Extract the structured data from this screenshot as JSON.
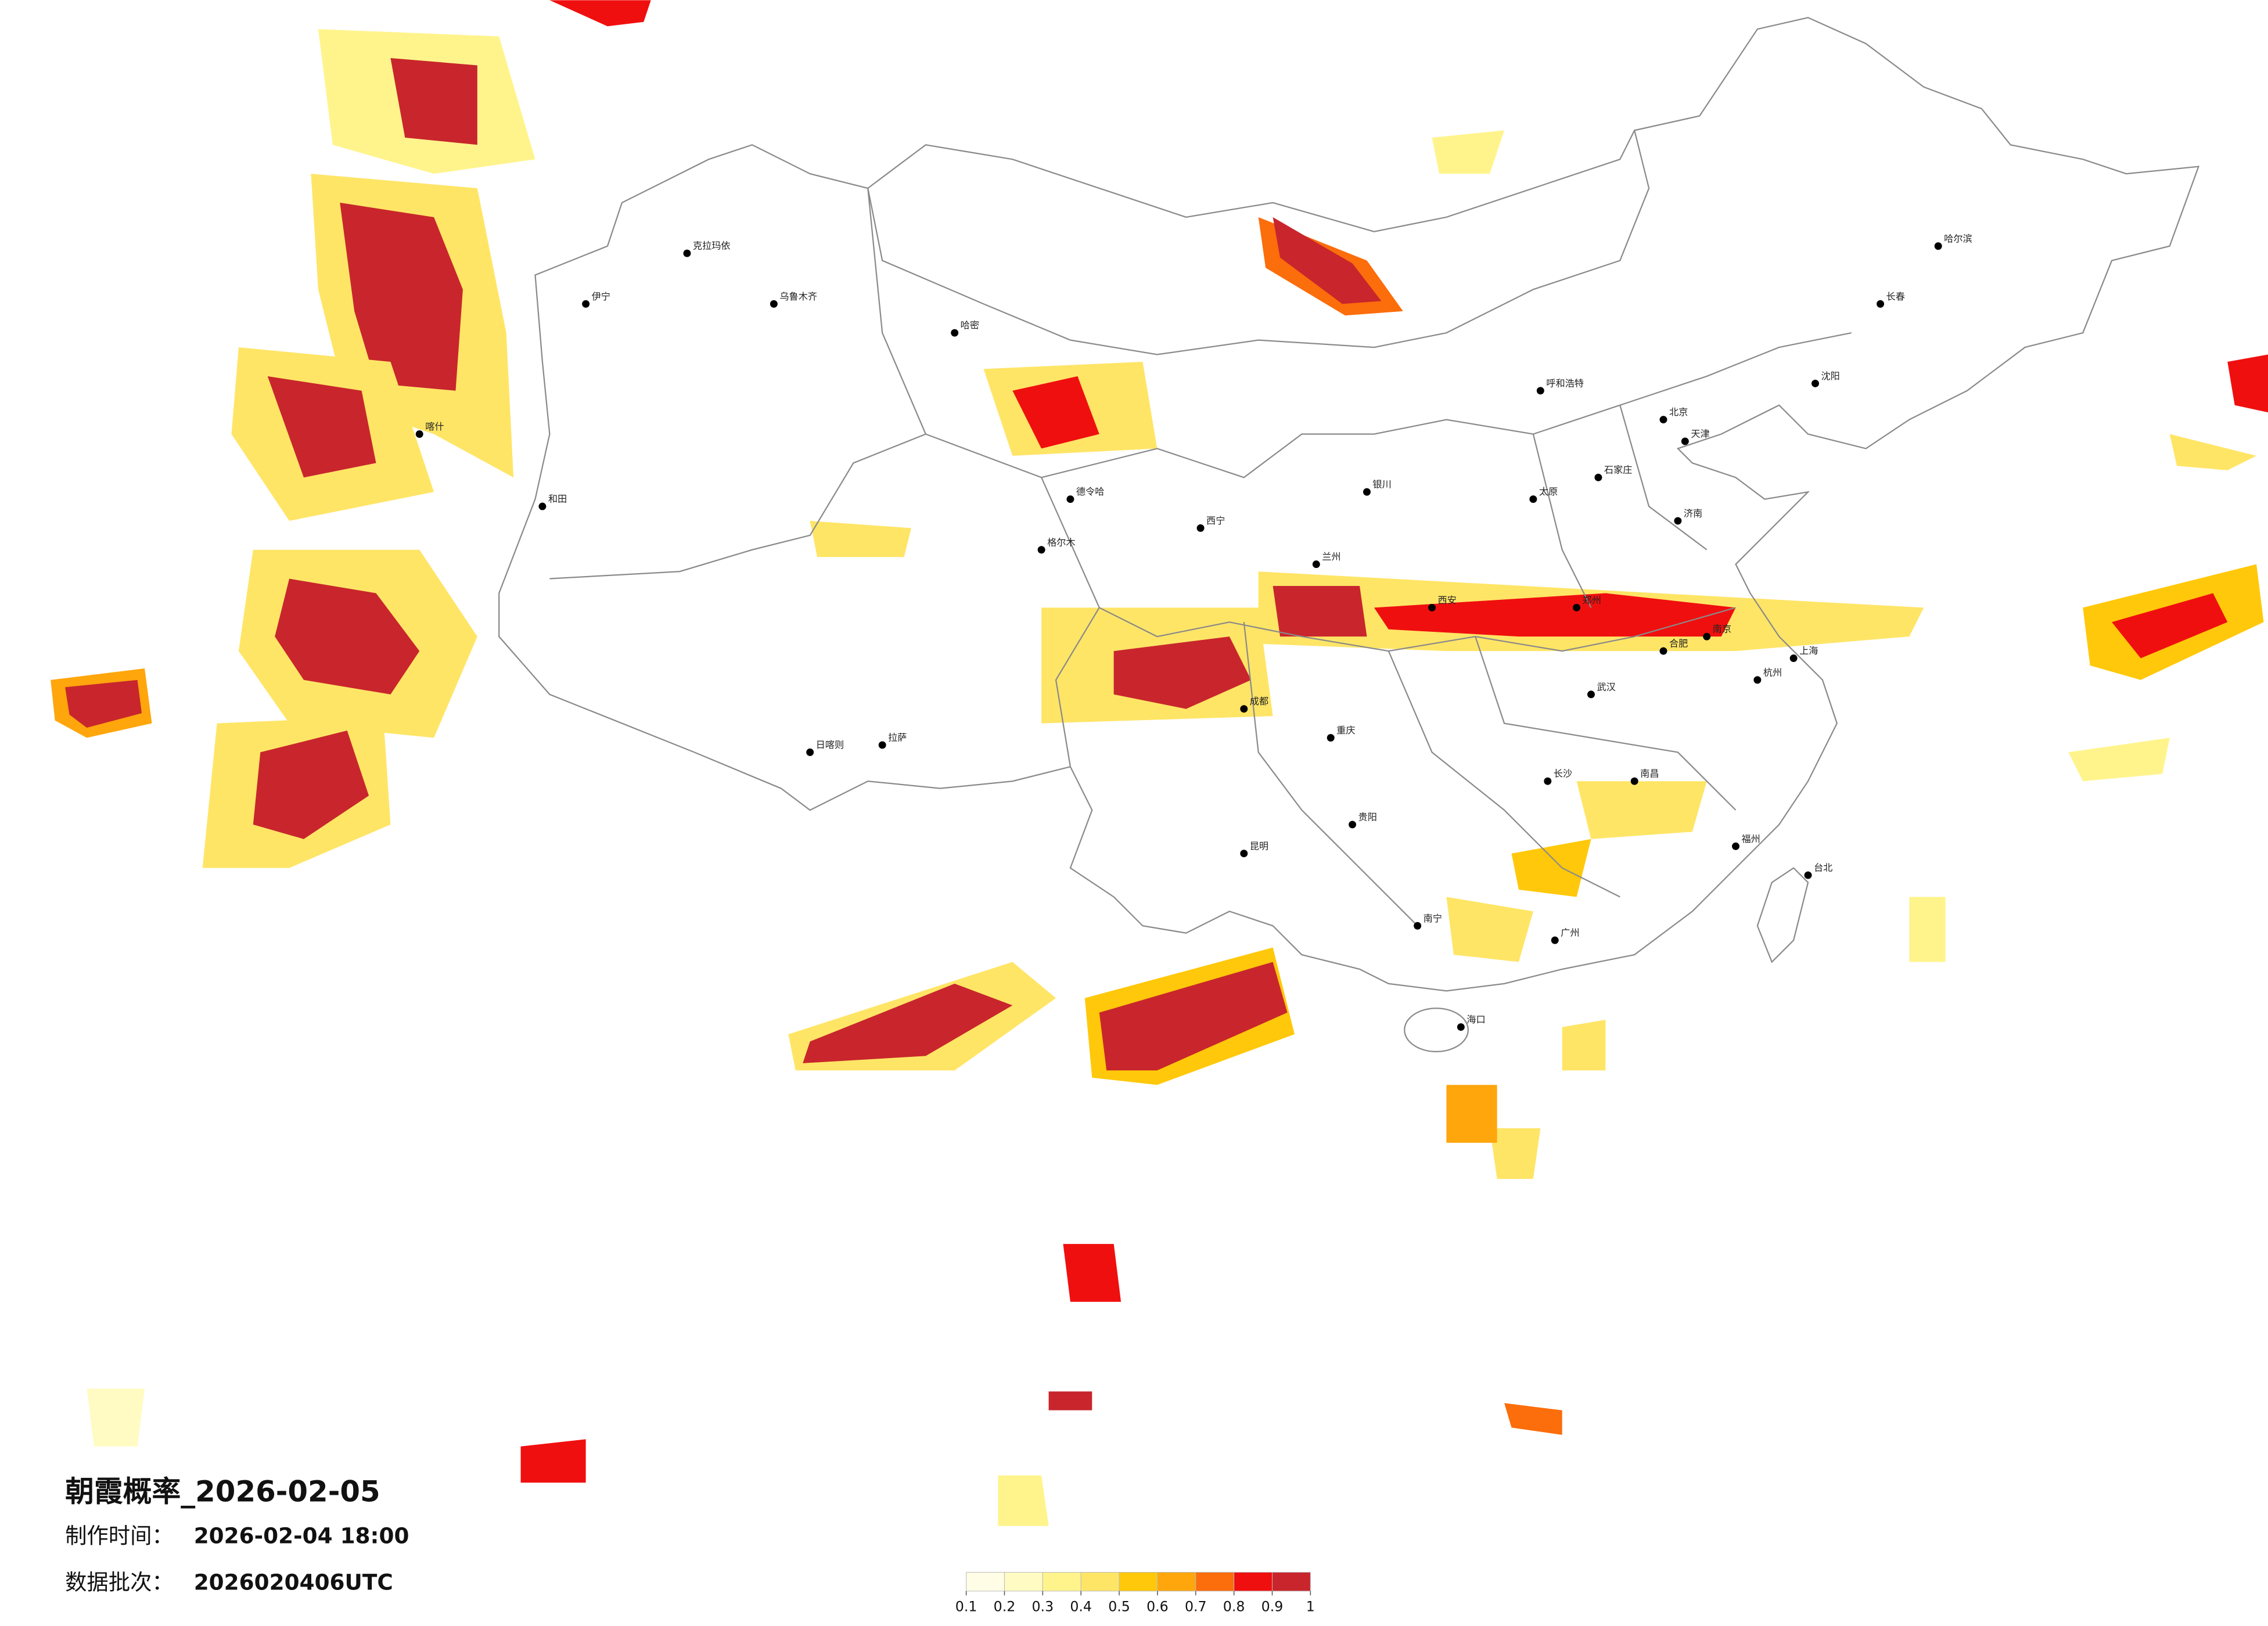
{
  "header": {
    "title": "朝霞概率_2026-02-05",
    "made_label": "制作时间：",
    "made_value": "2026-02-04 18:00",
    "batch_label": "数据批次：",
    "batch_value": "2026020406UTC"
  },
  "colorbar": {
    "ticks": [
      0.1,
      0.2,
      0.3,
      0.4,
      0.5,
      0.6,
      0.7,
      0.8,
      0.9,
      1
    ],
    "colors": [
      "#fffde6",
      "#fffbc2",
      "#fff48c",
      "#ffe566",
      "#ffc80a",
      "#ffa60c",
      "#fc6d0b",
      "#f00f0f",
      "#c8262c"
    ]
  },
  "cities": [
    "北京",
    "天津",
    "石家庄",
    "太原",
    "呼和浩特",
    "沈阳",
    "长春",
    "哈尔滨",
    "济南",
    "郑州",
    "西安",
    "兰州",
    "西宁",
    "银川",
    "乌鲁木齐",
    "拉萨",
    "成都",
    "重庆",
    "贵阳",
    "昆明",
    "南宁",
    "广州",
    "福州",
    "南昌",
    "长沙",
    "武汉",
    "合肥",
    "南京",
    "杭州",
    "上海",
    "海口",
    "台北",
    "喀什",
    "和田",
    "伊宁",
    "克拉玛依",
    "哈密",
    "德令哈",
    "日喀则",
    "格尔木"
  ]
}
